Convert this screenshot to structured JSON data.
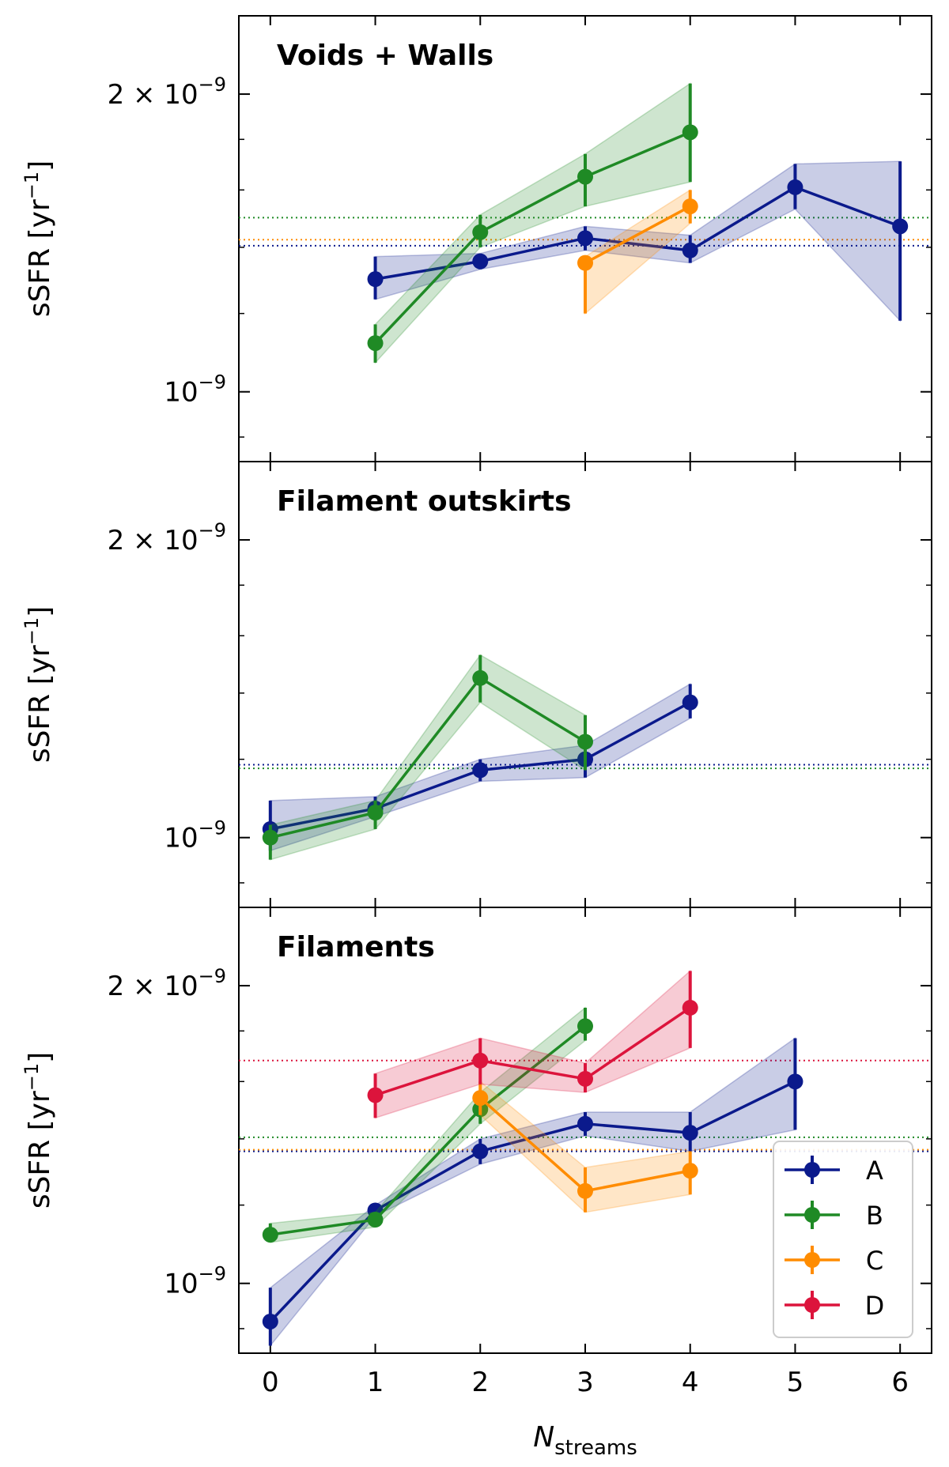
{
  "chart_data": {
    "type": "line",
    "y_scale": "log",
    "ylim": [
      8.5e-10,
      2.4e-09
    ],
    "xlim": [
      -0.3,
      6.3
    ],
    "x_ticks": [
      0,
      1,
      2,
      3,
      4,
      5,
      6
    ],
    "x_tick_labels": [
      "0",
      "1",
      "2",
      "3",
      "4",
      "5",
      "6"
    ],
    "y_major_ticks": [
      {
        "value": 2e-09,
        "base": "2 × 10",
        "exp": "−9"
      },
      {
        "value": 1e-09,
        "base": "10",
        "exp": "−9"
      }
    ],
    "y_minor_ticks": [
      9e-10,
      1.2e-09,
      1.4e-09,
      1.6e-09,
      1.8e-09
    ],
    "xlabel": {
      "main": "N",
      "sub": "streams"
    },
    "ylabel": {
      "main": "sSFR [yr",
      "sup": "−1",
      "close": "]"
    },
    "colors": {
      "A": "#0b1a8c",
      "B": "#1f8a25",
      "C": "#ff8c00",
      "D": "#dc143c"
    },
    "legend": {
      "position": "lower-right",
      "entries": [
        "A",
        "B",
        "C",
        "D"
      ]
    },
    "panels": [
      {
        "title": "Voids + Walls",
        "hlines": [
          {
            "series": "B",
            "value": 1.5e-09
          },
          {
            "series": "C",
            "value": 1.425e-09
          },
          {
            "series": "A",
            "value": 1.405e-09
          }
        ],
        "series": [
          {
            "name": "A",
            "x": [
              1,
              2,
              3,
              4,
              5,
              6
            ],
            "y": [
              1.3e-09,
              1.355e-09,
              1.43e-09,
              1.39e-09,
              1.61e-09,
              1.47e-09
            ],
            "lo": [
              1.24e-09,
              1.33e-09,
              1.39e-09,
              1.35e-09,
              1.53e-09,
              1.18e-09
            ],
            "hi": [
              1.37e-09,
              1.38e-09,
              1.47e-09,
              1.44e-09,
              1.7e-09,
              1.71e-09
            ]
          },
          {
            "name": "B",
            "x": [
              1,
              2,
              3,
              4
            ],
            "y": [
              1.12e-09,
              1.45e-09,
              1.65e-09,
              1.83e-09
            ],
            "lo": [
              1.07e-09,
              1.4e-09,
              1.54e-09,
              1.63e-09
            ],
            "hi": [
              1.17e-09,
              1.51e-09,
              1.74e-09,
              2.05e-09
            ]
          },
          {
            "name": "C",
            "x": [
              3,
              4
            ],
            "y": [
              1.35e-09,
              1.54e-09
            ],
            "lo": [
              1.2e-09,
              1.48e-09
            ],
            "hi": [
              1.37e-09,
              1.6e-09
            ]
          }
        ]
      },
      {
        "title": "Filament outskirts",
        "hlines": [
          {
            "series": "A",
            "value": 1.185e-09
          },
          {
            "series": "B",
            "value": 1.175e-09
          }
        ],
        "series": [
          {
            "name": "A",
            "x": [
              0,
              1,
              2,
              3,
              4
            ],
            "y": [
              1.02e-09,
              1.07e-09,
              1.17e-09,
              1.2e-09,
              1.37e-09
            ],
            "lo": [
              9.7e-10,
              1.05e-09,
              1.14e-09,
              1.15e-09,
              1.32e-09
            ],
            "hi": [
              1.09e-09,
              1.1e-09,
              1.2e-09,
              1.24e-09,
              1.43e-09
            ]
          },
          {
            "name": "B",
            "x": [
              0,
              1,
              2,
              3
            ],
            "y": [
              1e-09,
              1.06e-09,
              1.45e-09,
              1.25e-09
            ],
            "lo": [
              9.5e-10,
              1.02e-09,
              1.37e-09,
              1.17e-09
            ],
            "hi": [
              1.03e-09,
              1.09e-09,
              1.53e-09,
              1.33e-09
            ]
          }
        ]
      },
      {
        "title": "Filaments",
        "hlines": [
          {
            "series": "D",
            "value": 1.68e-09
          },
          {
            "series": "B",
            "value": 1.405e-09
          },
          {
            "series": "C",
            "value": 1.365e-09
          },
          {
            "series": "A",
            "value": 1.36e-09
          }
        ],
        "series": [
          {
            "name": "A",
            "x": [
              0,
              1,
              2,
              3,
              4,
              5
            ],
            "y": [
              9.15e-10,
              1.185e-09,
              1.36e-09,
              1.45e-09,
              1.42e-09,
              1.6e-09
            ],
            "lo": [
              8.65e-10,
              1.17e-09,
              1.32e-09,
              1.41e-09,
              1.36e-09,
              1.43e-09
            ],
            "hi": [
              9.9e-10,
              1.2e-09,
              1.4e-09,
              1.49e-09,
              1.49e-09,
              1.77e-09
            ]
          },
          {
            "name": "B",
            "x": [
              0,
              1,
              2,
              3
            ],
            "y": [
              1.12e-09,
              1.16e-09,
              1.5e-09,
              1.82e-09
            ],
            "lo": [
              1.1e-09,
              1.14e-09,
              1.45e-09,
              1.76e-09
            ],
            "hi": [
              1.15e-09,
              1.18e-09,
              1.56e-09,
              1.9e-09
            ]
          },
          {
            "name": "C",
            "x": [
              2,
              3,
              4
            ],
            "y": [
              1.54e-09,
              1.24e-09,
              1.3e-09
            ],
            "lo": [
              1.48e-09,
              1.18e-09,
              1.23e-09
            ],
            "hi": [
              1.6e-09,
              1.31e-09,
              1.36e-09
            ]
          },
          {
            "name": "D",
            "x": [
              1,
              2,
              3,
              4
            ],
            "y": [
              1.55e-09,
              1.68e-09,
              1.61e-09,
              1.9e-09
            ],
            "lo": [
              1.47e-09,
              1.59e-09,
              1.56e-09,
              1.73e-09
            ],
            "hi": [
              1.63e-09,
              1.77e-09,
              1.67e-09,
              2.07e-09
            ]
          }
        ]
      }
    ]
  }
}
